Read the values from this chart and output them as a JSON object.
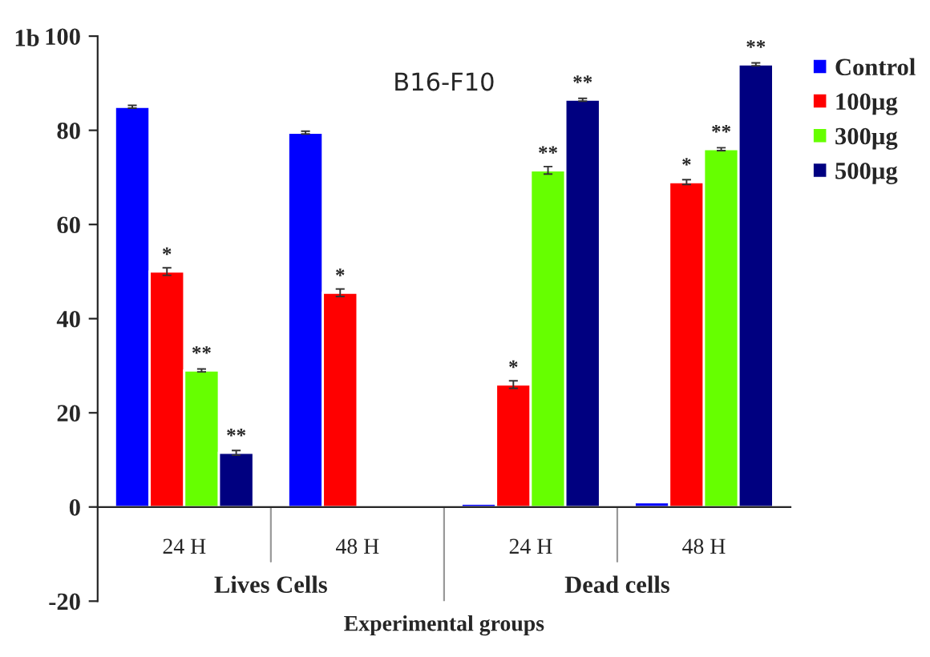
{
  "chart_data": {
    "type": "bar",
    "title": "B16-F10",
    "xlabel": "Experimental groups",
    "categories": [
      "24 H",
      "48 H",
      "24 H",
      "48 H"
    ],
    "series": [
      {
        "name": "Control",
        "color": "#0000ff",
        "values": [
          85,
          79.5,
          0.7,
          1.0
        ],
        "errors": [
          0.3,
          0.3,
          null,
          null
        ]
      },
      {
        "name": "100µg",
        "color": "#ff0000",
        "values": [
          50,
          45.5,
          26,
          69
        ],
        "errors": [
          0.8,
          0.8,
          0.8,
          0.5
        ],
        "value_labels": [
          "*",
          "*",
          "*",
          "*"
        ]
      },
      {
        "name": "300µg",
        "color": "#66ff00",
        "values": [
          29,
          null,
          71.5,
          76
        ],
        "errors": [
          0.3,
          null,
          0.8,
          0.3
        ],
        "value_labels": [
          "**",
          null,
          "**",
          "**"
        ]
      },
      {
        "name": "500µg",
        "color": "#000080",
        "values": [
          11.5,
          null,
          86.5,
          94
        ],
        "errors": [
          0.5,
          null,
          0.3,
          0.3
        ],
        "value_labels": [
          "**",
          null,
          "**",
          "**"
        ]
      }
    ],
    "ylim": [
      -20,
      100
    ],
    "yticks": [
      -20,
      0,
      20,
      40,
      60,
      80,
      100
    ],
    "annotations": [
      "1b",
      "Lives Cells",
      "Dead cells"
    ],
    "legend": "top right",
    "grid": false
  }
}
